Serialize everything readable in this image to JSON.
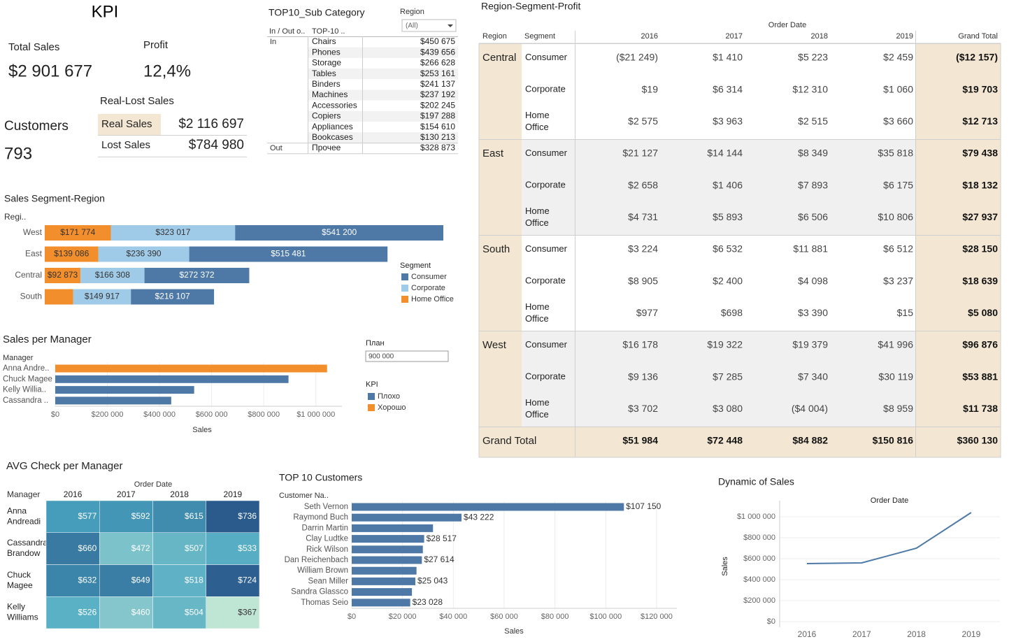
{
  "kpi": {
    "title": "KPI",
    "total_sales_label": "Total Sales",
    "total_sales": "$2 901 677",
    "profit_label": "Profit",
    "profit": "12,4%",
    "customers_label": "Customers",
    "customers": "793",
    "real_lost": {
      "title": "Real-Lost Sales",
      "rows": [
        [
          "Real Sales",
          "$2 116 697"
        ],
        [
          "Lost Sales",
          "$784 980"
        ]
      ]
    }
  },
  "top10_sub": {
    "title": "TOP10_Sub Category",
    "filter_label": "Region",
    "filter_value": "(All)",
    "headers": [
      "In / Out o..",
      "TOP-10 .."
    ],
    "groups": [
      {
        "name": "In",
        "rows": [
          [
            "Chairs",
            "$450 675"
          ],
          [
            "Phones",
            "$439 656"
          ],
          [
            "Storage",
            "$266 628"
          ],
          [
            "Tables",
            "$253 161"
          ],
          [
            "Binders",
            "$241 137"
          ],
          [
            "Machines",
            "$237 192"
          ],
          [
            "Accessories",
            "$202 245"
          ],
          [
            "Copiers",
            "$197 288"
          ],
          [
            "Appliances",
            "$154 610"
          ],
          [
            "Bookcases",
            "$130 213"
          ]
        ]
      },
      {
        "name": "Out",
        "rows": [
          [
            "Прочее",
            "$328 873"
          ]
        ]
      }
    ]
  },
  "profit_table": {
    "title": "Region-Segment-Profit",
    "column_group": "Order Date",
    "headers": [
      "Region",
      "Segment",
      "2016",
      "2017",
      "2018",
      "2019",
      "Grand Total"
    ],
    "regions": [
      {
        "name": "Central",
        "rows": [
          {
            "segment": "Consumer",
            "values": [
              "($21 249)",
              "$1 410",
              "$5 223",
              "$2 459",
              "($12 157)"
            ]
          },
          {
            "segment": "Corporate",
            "values": [
              "$19",
              "$6 314",
              "$12 310",
              "$1 060",
              "$19 703"
            ]
          },
          {
            "segment": "Home Office",
            "values": [
              "$2 575",
              "$3 963",
              "$2 515",
              "$3 660",
              "$12 713"
            ]
          }
        ]
      },
      {
        "name": "East",
        "rows": [
          {
            "segment": "Consumer",
            "values": [
              "$21 127",
              "$14 144",
              "$8 349",
              "$35 818",
              "$79 438"
            ]
          },
          {
            "segment": "Corporate",
            "values": [
              "$2 658",
              "$1 406",
              "$7 893",
              "$6 175",
              "$18 132"
            ]
          },
          {
            "segment": "Home Office",
            "values": [
              "$4 731",
              "$5 893",
              "$6 506",
              "$10 806",
              "$27 937"
            ]
          }
        ]
      },
      {
        "name": "South",
        "rows": [
          {
            "segment": "Consumer",
            "values": [
              "$3 224",
              "$6 532",
              "$11 881",
              "$6 512",
              "$28 150"
            ]
          },
          {
            "segment": "Corporate",
            "values": [
              "$8 905",
              "$2 400",
              "$4 098",
              "$3 237",
              "$18 639"
            ]
          },
          {
            "segment": "Home Office",
            "values": [
              "$977",
              "$698",
              "$3 390",
              "$15",
              "$5 080"
            ]
          }
        ]
      },
      {
        "name": "West",
        "rows": [
          {
            "segment": "Consumer",
            "values": [
              "$16 178",
              "$19 322",
              "$19 379",
              "$41 996",
              "$96 876"
            ]
          },
          {
            "segment": "Corporate",
            "values": [
              "$9 136",
              "$7 285",
              "$7 340",
              "$30 119",
              "$53 881"
            ]
          },
          {
            "segment": "Home Office",
            "values": [
              "$3 702",
              "$3 080",
              "($4 004)",
              "$8 959",
              "$11 738"
            ]
          }
        ]
      }
    ],
    "grand_total": {
      "label": "Grand Total",
      "values": [
        "$51 984",
        "$72 448",
        "$84 882",
        "$150 816",
        "$360 130"
      ]
    }
  },
  "chart_data": [
    {
      "type": "stacked_hbar",
      "title": "Sales Segment-Region",
      "category_label": "Regi..",
      "categories": [
        "West",
        "East",
        "Central",
        "South"
      ],
      "legend_title": "Segment",
      "series": [
        {
          "name": "Consumer",
          "color": "#4e79a7",
          "values": [
            541200,
            515481,
            272372,
            216107
          ],
          "value_labels": [
            "$541 200",
            "$515 481",
            "$272 372",
            "$216 107"
          ]
        },
        {
          "name": "Corporate",
          "color": "#a0cbe8",
          "values": [
            323017,
            236390,
            166308,
            149917
          ],
          "value_labels": [
            "$323 017",
            "$236 390",
            "$166 308",
            "$149 917"
          ]
        },
        {
          "name": "Home Office",
          "color": "#f28e2b",
          "values": [
            171774,
            139086,
            92873,
            74000
          ],
          "value_labels": [
            "$171 774",
            "$139 086",
            "$92 873",
            null
          ]
        }
      ]
    },
    {
      "type": "hbar",
      "title": "Sales per Manager",
      "category_label": "Manager",
      "categories": [
        "Anna Andre..",
        "Chuck Magee",
        "Kelly Willia..",
        "Cassandra .."
      ],
      "values": [
        1043000,
        895000,
        533000,
        445000
      ],
      "x_label": "Sales",
      "xlim": [
        0,
        1100000
      ],
      "xticks": [
        {
          "value": 0,
          "label": "$0"
        },
        {
          "value": 200000,
          "label": "$200 000"
        },
        {
          "value": 400000,
          "label": "$400 000"
        },
        {
          "value": 600000,
          "label": "$600 000"
        },
        {
          "value": 800000,
          "label": "$800 000"
        },
        {
          "value": 1000000,
          "label": "$1 000 000"
        }
      ],
      "grid": true,
      "plan": {
        "label": "План",
        "value": 900000,
        "value_label": "900 000"
      },
      "legend_title": "KPI",
      "legend": [
        {
          "name": "Плохо",
          "color": "#4e79a7"
        },
        {
          "name": "Хорошо",
          "color": "#f28e2b"
        }
      ]
    },
    {
      "type": "heatmap",
      "title": "AVG Check per Manager",
      "column_group": "Order Date",
      "row_header": "Manager",
      "x": [
        "2016",
        "2017",
        "2018",
        "2019"
      ],
      "y": [
        "Anna Andreadi",
        "Cassandra Brandow",
        "Chuck Magee",
        "Kelly Williams"
      ],
      "values": [
        [
          577,
          592,
          615,
          736
        ],
        [
          660,
          472,
          507,
          533
        ],
        [
          632,
          649,
          518,
          724
        ],
        [
          526,
          460,
          504,
          367
        ]
      ],
      "value_labels": [
        [
          "$577",
          "$592",
          "$615",
          "$736"
        ],
        [
          "$660",
          "$472",
          "$507",
          "$533"
        ],
        [
          "$632",
          "$649",
          "$518",
          "$724"
        ],
        [
          "$526",
          "$460",
          "$504",
          "$367"
        ]
      ],
      "color_scale": [
        "#bfe6d4",
        "#4aa7c2",
        "#2b5a8c"
      ]
    },
    {
      "type": "hbar",
      "title": "TOP 10 Customers",
      "category_label": "Customer Na..",
      "categories": [
        "Seth Vernon",
        "Raymond Buch",
        "Darrin Martin",
        "Clay Ludtke",
        "Rick Wilson",
        "Dan Reichenbach",
        "William Brown",
        "Sean Miller",
        "Sandra Glassco",
        "Thomas Seio"
      ],
      "values": [
        107150,
        43222,
        32000,
        28517,
        28000,
        27614,
        25500,
        25043,
        23700,
        23028
      ],
      "value_labels": [
        "$107 150",
        "$43 222",
        null,
        "$28 517",
        null,
        "$27 614",
        null,
        "$25 043",
        null,
        "$23 028"
      ],
      "color": "#4e79a7",
      "x_label": "Sales",
      "xlim": [
        0,
        128000
      ],
      "xticks": [
        {
          "value": 0,
          "label": "$0"
        },
        {
          "value": 20000,
          "label": "$20 000"
        },
        {
          "value": 40000,
          "label": "$40 000"
        },
        {
          "value": 60000,
          "label": "$60 000"
        },
        {
          "value": 80000,
          "label": "$80 000"
        },
        {
          "value": 100000,
          "label": "$100 000"
        },
        {
          "value": 120000,
          "label": "$120 000"
        }
      ],
      "grid": true
    },
    {
      "type": "line",
      "title": "Dynamic of Sales",
      "x_label": "Order Date",
      "y_label": "Sales",
      "categories": [
        "2016",
        "2017",
        "2018",
        "2019"
      ],
      "values": [
        553000,
        560000,
        700000,
        1040000
      ],
      "color": "#4e79a7",
      "ylim": [
        0,
        1150000
      ],
      "yticks": [
        {
          "value": 0,
          "label": "$0"
        },
        {
          "value": 200000,
          "label": "$200 000"
        },
        {
          "value": 400000,
          "label": "$400 000"
        },
        {
          "value": 600000,
          "label": "$600 000"
        },
        {
          "value": 800000,
          "label": "$800 000"
        },
        {
          "value": 1000000,
          "label": "$1 000 000"
        }
      ],
      "grid": true
    }
  ]
}
